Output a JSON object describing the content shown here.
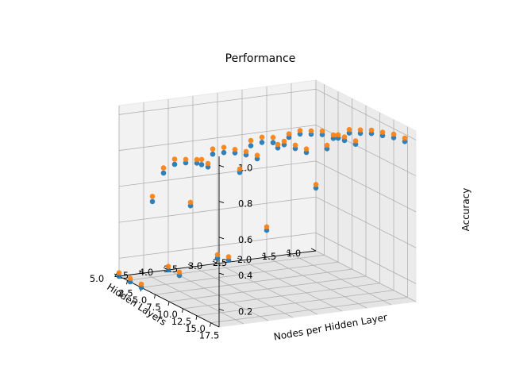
{
  "chart_data": {
    "type": "scatter",
    "title": "Performance",
    "xlabel": "Hidden Layers",
    "ylabel": "Nodes per Hidden Layer",
    "zlabel": "Accuracy",
    "x_ticks": [
      "1.0",
      "1.5",
      "2.0",
      "2.5",
      "3.0",
      "3.5",
      "4.0",
      "4.5",
      "5.0"
    ],
    "y_ticks": [
      "2.5",
      "5.0",
      "7.5",
      "10.0",
      "12.5",
      "15.0",
      "17.5"
    ],
    "z_ticks": [
      "0.2",
      "0.4",
      "0.6",
      "0.8",
      "1.0"
    ],
    "xlim": [
      1,
      5
    ],
    "ylim": [
      1,
      19
    ],
    "zlim": [
      0.1,
      1.05
    ],
    "hidden_layers": [
      1,
      2,
      3,
      4,
      5
    ],
    "nodes_per_layer": [
      1,
      3,
      5,
      7,
      9,
      11,
      13,
      15,
      17
    ],
    "series": [
      {
        "color": "#1f77b4",
        "values": [
          [
            0.45,
            0.7,
            0.79,
            0.85,
            0.88,
            0.91,
            0.93,
            0.95,
            0.96
          ],
          [
            0.25,
            0.74,
            0.83,
            0.88,
            0.91,
            0.94,
            0.95,
            0.97,
            0.98
          ],
          [
            0.13,
            0.15,
            0.67,
            0.85,
            0.9,
            0.93,
            0.95,
            0.96,
            0.97
          ],
          [
            0.1,
            0.1,
            0.52,
            0.78,
            0.87,
            0.91,
            0.94,
            0.96,
            0.97
          ],
          [
            0.1,
            0.1,
            0.1,
            0.61,
            0.8,
            0.88,
            0.92,
            0.95,
            0.96
          ]
        ]
      },
      {
        "color": "#ff7f0e",
        "values": [
          [
            0.46,
            0.71,
            0.8,
            0.86,
            0.89,
            0.92,
            0.94,
            0.96,
            0.97
          ],
          [
            0.26,
            0.75,
            0.84,
            0.89,
            0.92,
            0.95,
            0.96,
            0.98,
            0.99
          ],
          [
            0.14,
            0.16,
            0.68,
            0.87,
            0.92,
            0.95,
            0.96,
            0.97,
            0.98
          ],
          [
            0.11,
            0.11,
            0.53,
            0.8,
            0.89,
            0.93,
            0.95,
            0.97,
            0.98
          ],
          [
            0.11,
            0.11,
            0.11,
            0.63,
            0.82,
            0.9,
            0.93,
            0.96,
            0.97
          ]
        ]
      }
    ]
  }
}
